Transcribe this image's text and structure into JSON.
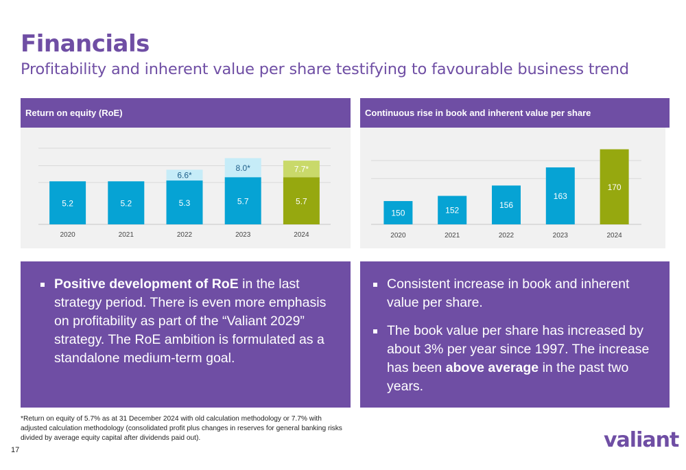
{
  "header": {
    "title": "Financials",
    "subtitle": "Profitability and inherent value per share testifying to favourable business trend"
  },
  "left_panel": {
    "header": "Return on equity (RoE)",
    "bullets": [
      {
        "bold": "Positive development of RoE",
        "text": " in the last strategy period. There is even more emphasis on profitability as part of the “Valiant 2029” strategy. The RoE ambition is formulated as a standalone medium-term goal."
      }
    ]
  },
  "right_panel": {
    "header": "Continuous rise in book and inherent value per share",
    "bullet1": "Consistent increase in book and inherent value per share.",
    "bullet2_before": "The book value per share has increased by about 3% per year since 1997. The increase has been ",
    "bullet2_bold": "above average",
    "bullet2_after": " in the past two years."
  },
  "footnote": "*Return on equity of 5.7% as at 31 December 2024 with old calculation methodology or 7.7% with adjusted calculation methodology (consolidated profit plus changes in reserves for general banking risks divided by average equity capital after dividends paid out).",
  "page_number": "17",
  "logo_text": "valiant",
  "colors": {
    "purple": "#6f4ea4",
    "blue": "#06a3d4",
    "light_blue": "#c6ecf8",
    "olive": "#96a80f",
    "light_olive": "#c9d96a",
    "chart_bg": "#f1f1f1"
  },
  "chart_data": [
    {
      "type": "bar",
      "stacked": true,
      "categories": [
        "2020",
        "2021",
        "2022",
        "2023",
        "2024"
      ],
      "series": [
        {
          "values": [
            5.2,
            5.2,
            5.3,
            5.7,
            5.7
          ],
          "labels": [
            "5.2",
            "5.2",
            "5.3",
            "5.7",
            "5.7"
          ]
        },
        {
          "values": [
            0,
            0,
            1.3,
            2.3,
            2.0
          ],
          "labels": [
            "",
            "",
            "6.6*",
            "8.0*",
            "7.7*"
          ]
        }
      ],
      "ylim": [
        0,
        9.2
      ],
      "grid": true,
      "highlight_category": "2024"
    },
    {
      "type": "bar",
      "categories": [
        "2020",
        "2021",
        "2022",
        "2023",
        "2024"
      ],
      "values": [
        150,
        152,
        156,
        163,
        170
      ],
      "labels": [
        "150",
        "152",
        "156",
        "163",
        "170"
      ],
      "ylim": [
        141,
        172
      ],
      "grid": true,
      "highlight_category": "2024"
    }
  ]
}
